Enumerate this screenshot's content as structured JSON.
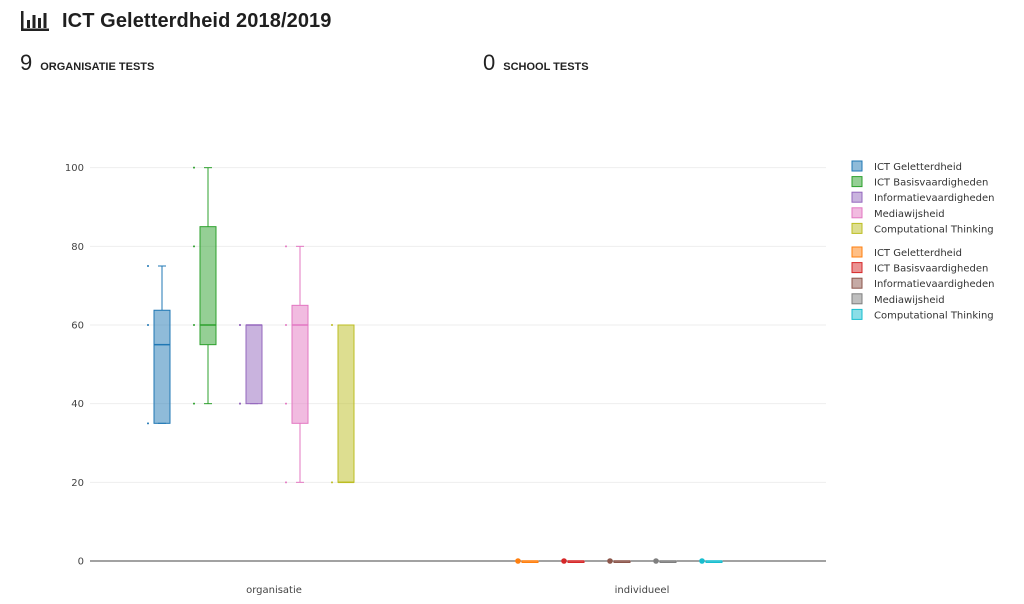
{
  "header": {
    "title": "ICT Geletterdheid 2018/2019",
    "icon": "bar-chart-icon"
  },
  "stats": {
    "organisation": {
      "value": "9",
      "label": "ORGANISATIE TESTS"
    },
    "school": {
      "value": "0",
      "label": "SCHOOL TESTS"
    }
  },
  "chart_data": {
    "type": "box",
    "categories": [
      "organisatie",
      "individueel"
    ],
    "ylim": [
      0,
      105
    ],
    "yticks": [
      0,
      20,
      40,
      60,
      80,
      100
    ],
    "grid": true,
    "legend_position": "right",
    "series": [
      {
        "name": "ICT Geletterdheid",
        "group": "organisatie",
        "color": "#1f77b4",
        "box": {
          "min": 35,
          "q1": 35,
          "median": 55,
          "q3": 63.75,
          "max": 75
        },
        "points": [
          75,
          60,
          35
        ]
      },
      {
        "name": "ICT Basisvaardigheden",
        "group": "organisatie",
        "color": "#2ca02c",
        "box": {
          "min": 40,
          "q1": 55,
          "median": 60,
          "q3": 85,
          "max": 100
        },
        "points": [
          100,
          80,
          60,
          40
        ]
      },
      {
        "name": "Informatievaardigheden",
        "group": "organisatie",
        "color": "#9467bd",
        "box": {
          "min": 40,
          "q1": 40,
          "median": 60,
          "q3": 60,
          "max": 60
        },
        "points": [
          60,
          60,
          40,
          40
        ]
      },
      {
        "name": "Mediawijsheid",
        "group": "organisatie",
        "color": "#e377c2",
        "box": {
          "min": 20,
          "q1": 35,
          "median": 60,
          "q3": 65,
          "max": 80
        },
        "points": [
          80,
          60,
          40,
          20
        ]
      },
      {
        "name": "Computational Thinking",
        "group": "organisatie",
        "color": "#bcbd22",
        "box": {
          "min": 20,
          "q1": 20,
          "median": 20,
          "q3": 60,
          "max": 60
        },
        "points": [
          60,
          20
        ]
      },
      {
        "name": "ICT Geletterdheid",
        "group": "individueel",
        "color": "#ff7f0e",
        "box": {
          "min": 0,
          "q1": 0,
          "median": 0,
          "q3": 0,
          "max": 0
        },
        "points": [
          0
        ]
      },
      {
        "name": "ICT Basisvaardigheden",
        "group": "individueel",
        "color": "#d62728",
        "box": {
          "min": 0,
          "q1": 0,
          "median": 0,
          "q3": 0,
          "max": 0
        },
        "points": [
          0
        ]
      },
      {
        "name": "Informatievaardigheden",
        "group": "individueel",
        "color": "#8c564b",
        "box": {
          "min": 0,
          "q1": 0,
          "median": 0,
          "q3": 0,
          "max": 0
        },
        "points": [
          0
        ]
      },
      {
        "name": "Mediawijsheid",
        "group": "individueel",
        "color": "#7f7f7f",
        "box": {
          "min": 0,
          "q1": 0,
          "median": 0,
          "q3": 0,
          "max": 0
        },
        "points": [
          0
        ]
      },
      {
        "name": "Computational Thinking",
        "group": "individueel",
        "color": "#17becf",
        "box": {
          "min": 0,
          "q1": 0,
          "median": 0,
          "q3": 0,
          "max": 0
        },
        "points": [
          0
        ]
      }
    ]
  }
}
